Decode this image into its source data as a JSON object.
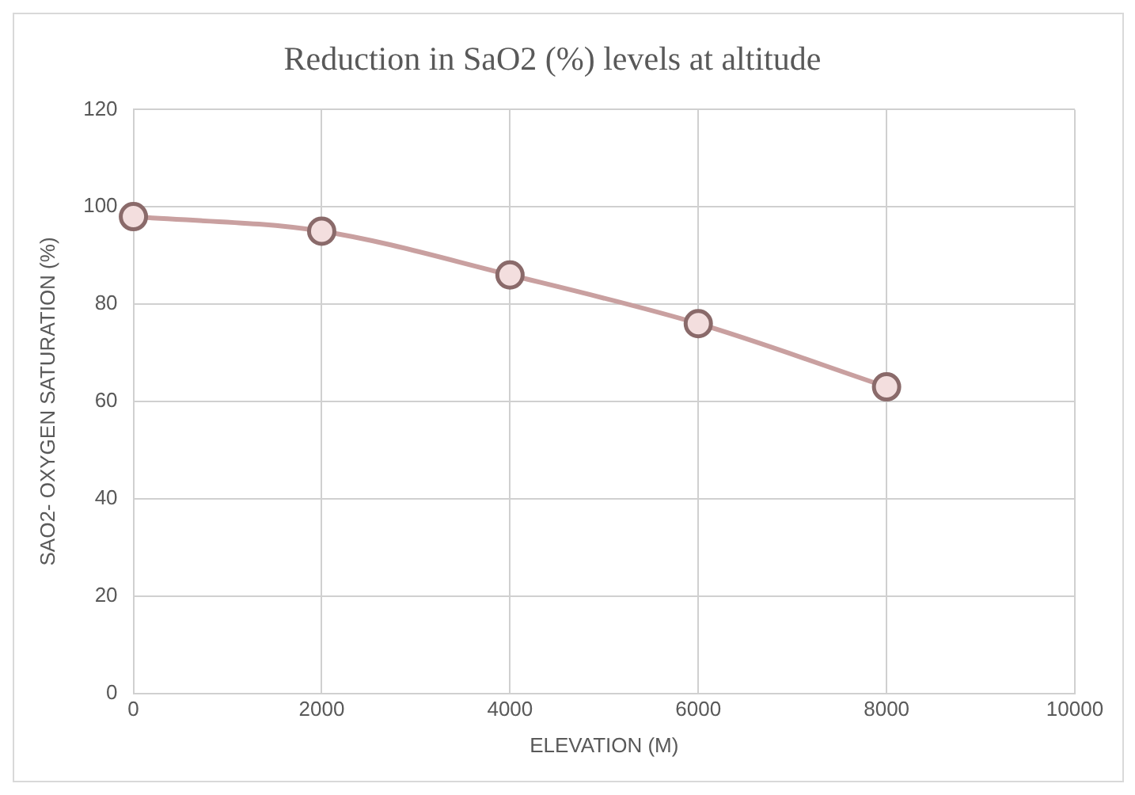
{
  "chart_data": {
    "type": "line",
    "title": "Reduction in SaO2 (%) levels at altitude",
    "xlabel": "ELEVATION (M)",
    "ylabel": "SAO2- OXYGEN SATURATION (%)",
    "x": [
      0,
      2000,
      4000,
      6000,
      8000
    ],
    "series": [
      {
        "color": "#c9a0a0",
        "values": [
          98,
          95,
          86,
          76,
          63
        ]
      }
    ],
    "xlim": [
      0,
      10000
    ],
    "xticks": [
      0,
      2000,
      4000,
      6000,
      8000,
      10000
    ],
    "ylim": [
      0,
      120
    ],
    "yticks": [
      0,
      20,
      40,
      60,
      80,
      100,
      120
    ],
    "grid": true,
    "marker": "circle",
    "line_style": "solid",
    "legend": false
  }
}
